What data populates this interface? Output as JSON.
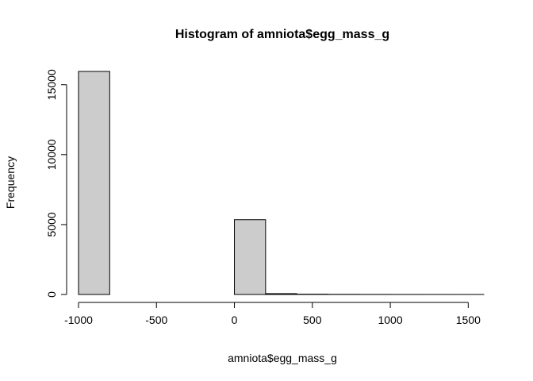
{
  "chart_data": {
    "type": "bar",
    "title": "Histogram of amniota$egg_mass_g",
    "xlabel": "amniota$egg_mass_g",
    "ylabel": "Frequency",
    "bins": [
      {
        "x0": -1000,
        "x1": -800,
        "count": 15950
      },
      {
        "x0": -800,
        "x1": -600,
        "count": 0
      },
      {
        "x0": -600,
        "x1": -400,
        "count": 0
      },
      {
        "x0": -400,
        "x1": -200,
        "count": 0
      },
      {
        "x0": -200,
        "x1": 0,
        "count": 0
      },
      {
        "x0": 0,
        "x1": 200,
        "count": 5350
      },
      {
        "x0": 200,
        "x1": 400,
        "count": 60
      },
      {
        "x0": 400,
        "x1": 600,
        "count": 20
      },
      {
        "x0": 600,
        "x1": 800,
        "count": 10
      },
      {
        "x0": 800,
        "x1": 1000,
        "count": 5
      },
      {
        "x0": 1000,
        "x1": 1200,
        "count": 3
      },
      {
        "x0": 1200,
        "x1": 1400,
        "count": 2
      },
      {
        "x0": 1400,
        "x1": 1600,
        "count": 1
      }
    ],
    "x_ticks": [
      -1000,
      -500,
      0,
      500,
      1000,
      1500
    ],
    "x_tick_labels": [
      "-1000",
      "-500",
      "0",
      "500",
      "1000",
      "1500"
    ],
    "y_ticks": [
      0,
      5000,
      10000,
      15000
    ],
    "y_tick_labels": [
      "0",
      "5000",
      "10000",
      "15000"
    ],
    "xlim": [
      -1000,
      1600
    ],
    "ylim": [
      0,
      15950
    ],
    "grid": false,
    "bar_color": "#cccccc",
    "edge_color": "#000000"
  }
}
